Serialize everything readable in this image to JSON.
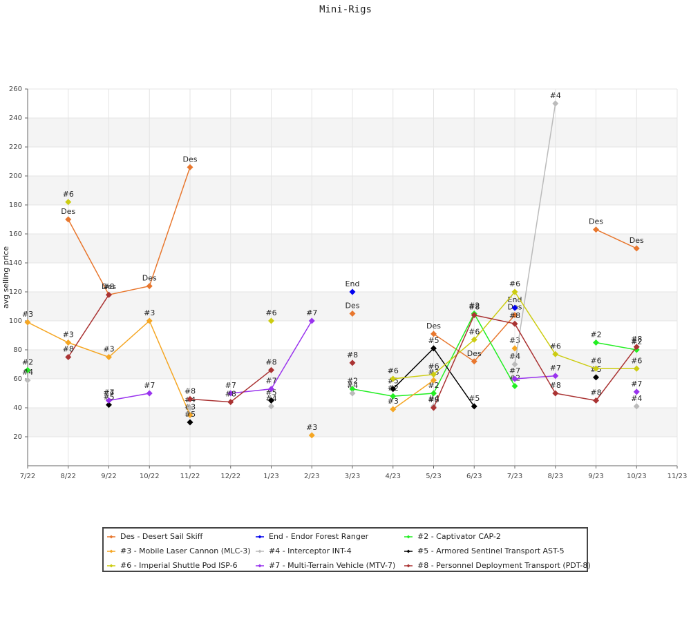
{
  "chart_data": {
    "type": "line",
    "title": "Mini-Rigs",
    "y_label": "avg selling price",
    "categories": [
      "7/22",
      "8/22",
      "9/22",
      "10/22",
      "11/22",
      "12/22",
      "1/23",
      "2/23",
      "3/23",
      "4/23",
      "5/23",
      "6/23",
      "7/23",
      "8/23",
      "9/23",
      "10/23",
      "11/23"
    ],
    "ylim": [
      0,
      260
    ],
    "yticks": [
      20,
      40,
      60,
      80,
      100,
      120,
      140,
      160,
      180,
      200,
      220,
      240,
      260
    ],
    "grid": true,
    "series": [
      {
        "name": "Des - Desert Sail Skiff",
        "label": "Des",
        "color": "#e8772e",
        "values": [
          null,
          170,
          118,
          124,
          206,
          null,
          null,
          null,
          105,
          null,
          91,
          72,
          104,
          null,
          163,
          150,
          null
        ]
      },
      {
        "name": "End - Endor Forest Ranger",
        "label": "End",
        "color": "#0000ee",
        "values": [
          null,
          null,
          null,
          null,
          null,
          null,
          null,
          null,
          120,
          null,
          null,
          null,
          109,
          null,
          null,
          null,
          null
        ]
      },
      {
        "name": "#2 - Captivator CAP-2",
        "label": "#2",
        "color": "#22ee22",
        "values": [
          66,
          null,
          null,
          null,
          null,
          null,
          null,
          null,
          53,
          48,
          50,
          105,
          55,
          null,
          85,
          80,
          null
        ]
      },
      {
        "name": "#3 - Mobile Laser Cannon (MLC-3)",
        "label": "#3",
        "color": "#f5a623",
        "values": [
          99,
          85,
          75,
          100,
          35,
          null,
          null,
          21,
          null,
          39,
          59,
          null,
          81,
          null,
          null,
          null,
          null
        ]
      },
      {
        "name": "#4 - Interceptor INT-4",
        "label": "#4",
        "color": "#bbbbbb",
        "values": [
          59,
          null,
          45,
          null,
          40,
          null,
          41,
          null,
          50,
          null,
          41,
          null,
          70,
          250,
          null,
          41,
          null
        ]
      },
      {
        "name": "#5 - Armored Sentinel Transport AST-5",
        "label": "#5",
        "color": "#000000",
        "values": [
          null,
          null,
          42,
          null,
          30,
          null,
          45,
          null,
          null,
          53,
          81,
          41,
          null,
          null,
          61,
          null,
          null
        ]
      },
      {
        "name": "#6 - Imperial Shuttle Pod ISP-6",
        "label": "#6",
        "color": "#cccc11",
        "values": [
          null,
          182,
          null,
          null,
          null,
          null,
          100,
          null,
          null,
          60,
          63,
          87,
          120,
          77,
          67,
          67,
          null
        ]
      },
      {
        "name": "#7 - Multi-Terrain Vehicle (MTV-7)",
        "label": "#7",
        "color": "#9933ee",
        "values": [
          null,
          null,
          45,
          50,
          null,
          50,
          53,
          100,
          null,
          null,
          null,
          null,
          60,
          62,
          null,
          51,
          null
        ]
      },
      {
        "name": "#8 - Personnel Deployment Transport (PDT-8)",
        "label": "#8",
        "color": "#aa3333",
        "values": [
          null,
          75,
          118,
          null,
          46,
          44,
          66,
          null,
          71,
          null,
          40,
          104,
          98,
          50,
          45,
          82,
          null
        ]
      }
    ]
  }
}
